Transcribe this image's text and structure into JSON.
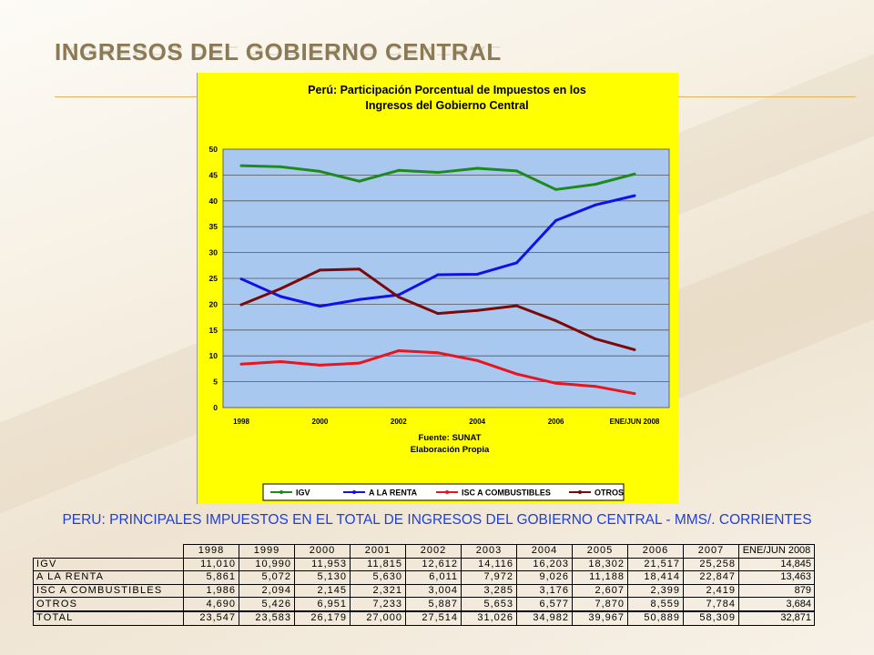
{
  "slide": {
    "title": "INGRESOS DEL GOBIERNO CENTRAL"
  },
  "chart_data": {
    "type": "line",
    "title": "Perú: Participación Porcentual de Impuestos en los Ingresos del Gobierno Central",
    "title_lines": [
      "Perú: Participación Porcentual de Impuestos en los",
      "Ingresos del Gobierno Central"
    ],
    "x": [
      "1998",
      "1999",
      "2000",
      "2001",
      "2002",
      "2003",
      "2004",
      "2005",
      "2006",
      "2007",
      "ENE/JUN 2008"
    ],
    "x_tick_labels": [
      "1998",
      "2000",
      "2002",
      "2004",
      "2006",
      "ENE/JUN 2008"
    ],
    "x_tick_indices": [
      0,
      2,
      4,
      6,
      8,
      10
    ],
    "ylim": [
      0,
      50
    ],
    "y_ticks": [
      0,
      5,
      10,
      15,
      20,
      25,
      30,
      35,
      40,
      45,
      50
    ],
    "grid": true,
    "legend_position": "bottom",
    "source_lines": [
      "Fuente: SUNAT",
      "Elaboración Propia"
    ],
    "series": [
      {
        "name": "IGV",
        "color": "#1e8a1e",
        "values": [
          46.8,
          46.6,
          45.7,
          43.8,
          45.9,
          45.5,
          46.3,
          45.8,
          42.2,
          43.2,
          45.2
        ]
      },
      {
        "name": "A LA RENTA",
        "color": "#1010e8",
        "values": [
          24.9,
          21.5,
          19.6,
          20.9,
          21.8,
          25.7,
          25.8,
          28.0,
          36.2,
          39.2,
          41.0
        ]
      },
      {
        "name": "ISC A COMBUSTIBLES",
        "color": "#e8141e",
        "values": [
          8.4,
          8.9,
          8.2,
          8.6,
          11.0,
          10.6,
          9.1,
          6.5,
          4.7,
          4.1,
          2.7
        ]
      },
      {
        "name": "OTROS",
        "color": "#7a0a0a",
        "values": [
          19.9,
          23.0,
          26.6,
          26.8,
          21.4,
          18.2,
          18.8,
          19.7,
          16.8,
          13.3,
          11.2
        ]
      }
    ]
  },
  "table": {
    "title": "PERU: PRINCIPALES IMPUESTOS EN EL TOTAL DE INGRESOS DEL GOBIERNO CENTRAL - MMS/. CORRIENTES",
    "headers": [
      "1998",
      "1999",
      "2000",
      "2001",
      "2002",
      "2003",
      "2004",
      "2005",
      "2006",
      "2007",
      "ENE/JUN 2008"
    ],
    "rows": [
      {
        "label": "IGV",
        "values": [
          "11,010",
          "10,990",
          "11,953",
          "11,815",
          "12,612",
          "14,116",
          "16,203",
          "18,302",
          "21,517",
          "25,258",
          "14,845"
        ]
      },
      {
        "label": "A LA RENTA",
        "values": [
          "5,861",
          "5,072",
          "5,130",
          "5,630",
          "6,011",
          "7,972",
          "9,026",
          "11,188",
          "18,414",
          "22,847",
          "13,463"
        ]
      },
      {
        "label": "ISC A COMBUSTIBLES",
        "values": [
          "1,986",
          "2,094",
          "2,145",
          "2,321",
          "3,004",
          "3,285",
          "3,176",
          "2,607",
          "2,399",
          "2,419",
          "879"
        ]
      },
      {
        "label": "OTROS",
        "values": [
          "4,690",
          "5,426",
          "6,951",
          "7,233",
          "5,887",
          "5,653",
          "6,577",
          "7,870",
          "8,559",
          "7,784",
          "3,684"
        ]
      },
      {
        "label": "TOTAL",
        "values": [
          "23,547",
          "23,583",
          "26,179",
          "27,000",
          "27,514",
          "31,026",
          "34,982",
          "39,967",
          "50,889",
          "58,309",
          "32,871"
        ]
      }
    ]
  }
}
